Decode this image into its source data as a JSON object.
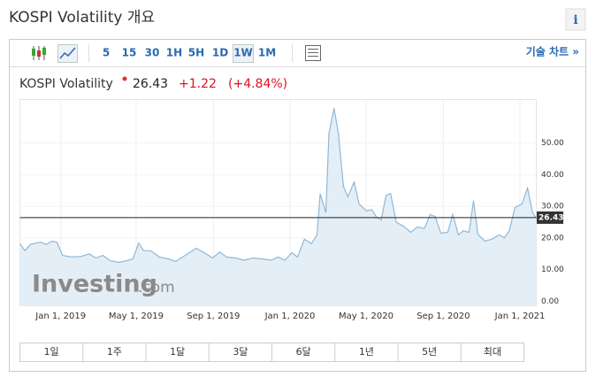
{
  "header": {
    "title": "KOSPI Volatility 개요",
    "info": "i"
  },
  "toolbar": {
    "intervals": [
      "5",
      "15",
      "30",
      "1H",
      "5H",
      "1D",
      "1W",
      "1M"
    ],
    "active_interval": 6,
    "tech_chart": "기술 차트 »"
  },
  "quote": {
    "name": "KOSPI Volatility",
    "price": "26.43",
    "change": "+1.22",
    "change_pct": "(+4.84%)"
  },
  "watermark": {
    "brand": "Investing",
    "suffix": ".com"
  },
  "ranges": [
    "1일",
    "1주",
    "1달",
    "3달",
    "6달",
    "1년",
    "5년",
    "최대"
  ],
  "chart_data": {
    "type": "area",
    "color": "#8fb8d8",
    "fill": "#e4eef6",
    "x": [
      "2018-10-28",
      "2018-11-05",
      "2018-11-14",
      "2018-11-29",
      "2018-12-09",
      "2018-12-18",
      "2018-12-26",
      "2019-01-04",
      "2019-01-18",
      "2019-02-03",
      "2019-02-15",
      "2019-02-26",
      "2019-03-09",
      "2019-03-21",
      "2019-04-04",
      "2019-04-19",
      "2019-04-26",
      "2019-05-05",
      "2019-05-13",
      "2019-05-24",
      "2019-06-07",
      "2019-06-21",
      "2019-07-03",
      "2019-07-14",
      "2019-07-25",
      "2019-08-05",
      "2019-08-17",
      "2019-08-31",
      "2019-09-11",
      "2019-09-22",
      "2019-10-06",
      "2019-10-20",
      "2019-11-03",
      "2019-11-18",
      "2019-12-02",
      "2019-12-13",
      "2019-12-24",
      "2020-01-04",
      "2020-01-13",
      "2020-01-24",
      "2020-02-04",
      "2020-02-13",
      "2020-02-18",
      "2020-02-27",
      "2020-03-03",
      "2020-03-11",
      "2020-03-18",
      "2020-03-26",
      "2020-04-02",
      "2020-04-12",
      "2020-04-20",
      "2020-05-02",
      "2020-05-10",
      "2020-05-18",
      "2020-05-25",
      "2020-06-02",
      "2020-06-09",
      "2020-06-18",
      "2020-06-30",
      "2020-07-11",
      "2020-07-22",
      "2020-08-02",
      "2020-08-11",
      "2020-08-19",
      "2020-08-28",
      "2020-09-08",
      "2020-09-16",
      "2020-09-25",
      "2020-10-03",
      "2020-10-12",
      "2020-10-19",
      "2020-10-26",
      "2020-11-06",
      "2020-11-17",
      "2020-11-29",
      "2020-12-07",
      "2020-12-15",
      "2020-12-24",
      "2021-01-04",
      "2021-01-13",
      "2021-01-21",
      "2021-01-27"
    ],
    "values": [
      18.2,
      16,
      18,
      18.7,
      18,
      19,
      18.7,
      14.5,
      14,
      14.2,
      15,
      13.7,
      14.5,
      12.8,
      12.3,
      13,
      13.4,
      18.4,
      16,
      16,
      14,
      13.4,
      12.6,
      14,
      15.4,
      16.8,
      15.4,
      13.7,
      15.6,
      14,
      13.7,
      13,
      13.7,
      13.4,
      13,
      14,
      13,
      15.4,
      14,
      19.6,
      18.2,
      21,
      34,
      28,
      53,
      61,
      53,
      36.3,
      33,
      37.7,
      30.7,
      28.5,
      29,
      26.5,
      25.7,
      33.5,
      34,
      25,
      23.7,
      21.8,
      23.5,
      23,
      27.4,
      26.8,
      21.5,
      21.8,
      27.4,
      21,
      22.3,
      21.8,
      31.8,
      21.2,
      19,
      19.6,
      21,
      20,
      22.3,
      29.6,
      30.7,
      35.8,
      28,
      26.3
    ],
    "xlim": [
      "2018-10-28",
      "2021-01-27"
    ],
    "xticks": [
      {
        "value": "2019-01-01",
        "label": "Jan 1, 2019"
      },
      {
        "value": "2019-05-01",
        "label": "May 1, 2019"
      },
      {
        "value": "2019-09-01",
        "label": "Sep 1, 2019"
      },
      {
        "value": "2020-01-01",
        "label": "Jan 1, 2020"
      },
      {
        "value": "2020-05-01",
        "label": "May 1, 2020"
      },
      {
        "value": "2020-09-01",
        "label": "Sep 1, 2020"
      },
      {
        "value": "2021-01-01",
        "label": "Jan 1, 2021"
      }
    ],
    "ylim": [
      -1.4,
      63.7
    ],
    "yticks": [
      {
        "value": 0,
        "label": "0.00"
      },
      {
        "value": 10,
        "label": "10.00"
      },
      {
        "value": 20,
        "label": "20.00"
      },
      {
        "value": 30,
        "label": "30.00"
      },
      {
        "value": 40,
        "label": "40.00"
      },
      {
        "value": 50,
        "label": "50.00"
      }
    ],
    "current_value": 26.43,
    "grid": true
  }
}
